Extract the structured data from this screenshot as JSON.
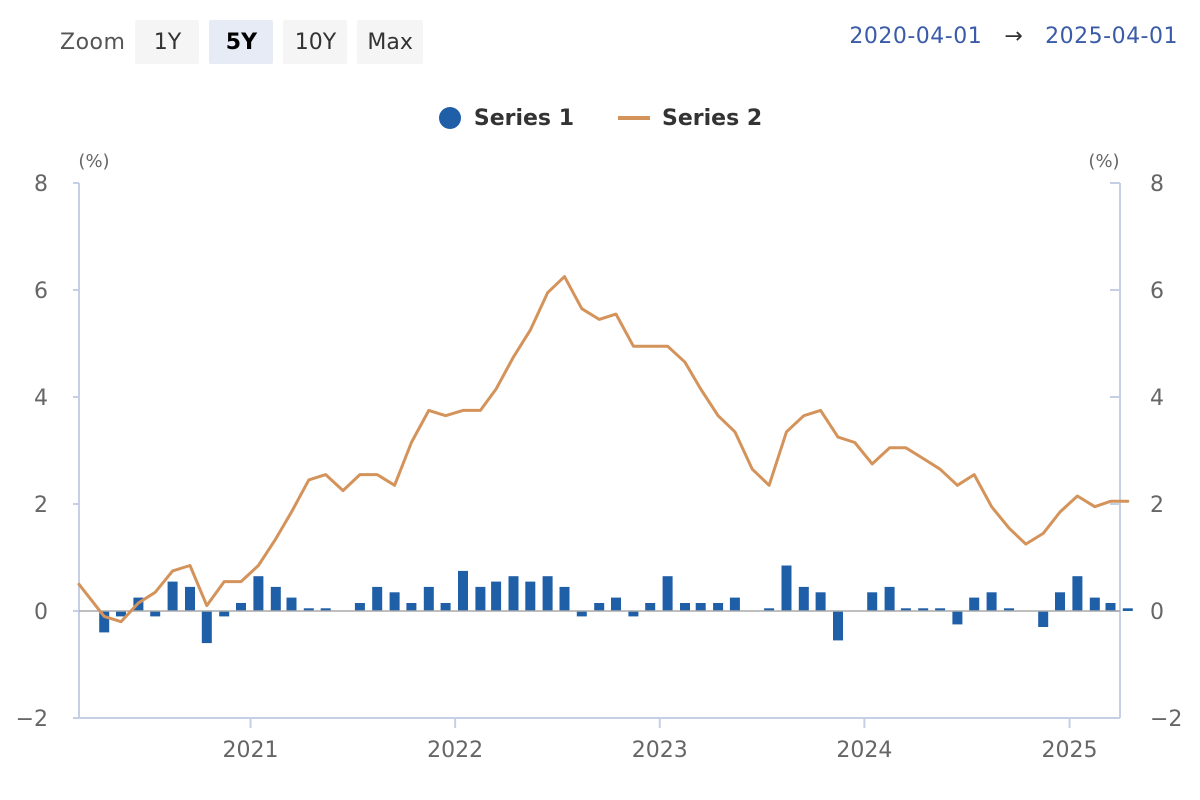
{
  "zoom": {
    "label": "Zoom",
    "buttons": [
      "1Y",
      "5Y",
      "10Y",
      "Max"
    ],
    "selected": "5Y"
  },
  "range": {
    "from": "2020-04-01",
    "arrow": "→",
    "to": "2025-04-01"
  },
  "colors": {
    "series1": "#1f5fa8",
    "series2": "#d4935a",
    "axis": "#c5cfe6",
    "zero_line": "#aaaaaa",
    "active_button": "#e6ebf5"
  },
  "chart_data": {
    "type": "bar+line",
    "x": [
      "2020-04",
      "2020-05",
      "2020-06",
      "2020-07",
      "2020-08",
      "2020-09",
      "2020-10",
      "2020-11",
      "2020-12",
      "2021-01",
      "2021-02",
      "2021-03",
      "2021-04",
      "2021-05",
      "2021-06",
      "2021-07",
      "2021-08",
      "2021-09",
      "2021-10",
      "2021-11",
      "2021-12",
      "2022-01",
      "2022-02",
      "2022-03",
      "2022-04",
      "2022-05",
      "2022-06",
      "2022-07",
      "2022-08",
      "2022-09",
      "2022-10",
      "2022-11",
      "2022-12",
      "2023-01",
      "2023-02",
      "2023-03",
      "2023-04",
      "2023-05",
      "2023-06",
      "2023-07",
      "2023-08",
      "2023-09",
      "2023-10",
      "2023-11",
      "2023-12",
      "2024-01",
      "2024-02",
      "2024-03",
      "2024-04",
      "2024-05",
      "2024-06",
      "2024-07",
      "2024-08",
      "2024-09",
      "2024-10",
      "2024-11",
      "2024-12",
      "2025-01",
      "2025-02",
      "2025-03",
      "2025-04"
    ],
    "series": [
      {
        "name": "Series 1",
        "type": "bar",
        "axis": "left",
        "values": [
          -0.4,
          -0.1,
          0.25,
          -0.1,
          0.55,
          0.45,
          -0.6,
          -0.1,
          0.15,
          0.65,
          0.45,
          0.25,
          0.05,
          0.05,
          0.0,
          0.15,
          0.45,
          0.35,
          0.15,
          0.45,
          0.15,
          0.75,
          0.45,
          0.55,
          0.65,
          0.55,
          0.65,
          0.45,
          -0.1,
          0.15,
          0.25,
          -0.1,
          0.15,
          0.65,
          0.15,
          0.15,
          0.15,
          0.25,
          0.0,
          0.05,
          0.85,
          0.45,
          0.35,
          -0.55,
          0.0,
          0.35,
          0.45,
          0.05,
          0.05,
          0.05,
          -0.25,
          0.25,
          0.35,
          0.05,
          0.0,
          -0.3,
          0.35,
          0.65,
          0.25,
          0.15,
          0.05
        ]
      },
      {
        "name": "Series 2",
        "type": "line",
        "axis": "right",
        "x": [
          "2020-03",
          "2020-04",
          "2020-05",
          "2020-06",
          "2020-07",
          "2020-08",
          "2020-09",
          "2020-10",
          "2020-11",
          "2020-12",
          "2021-01",
          "2021-02",
          "2021-03",
          "2021-04",
          "2021-05",
          "2021-06",
          "2021-07",
          "2021-08",
          "2021-09",
          "2021-10",
          "2021-11",
          "2021-12",
          "2022-01",
          "2022-02",
          "2022-03",
          "2022-04",
          "2022-05",
          "2022-06",
          "2022-07",
          "2022-08",
          "2022-09",
          "2022-10",
          "2022-11",
          "2022-12",
          "2023-01",
          "2023-02",
          "2023-03",
          "2023-04",
          "2023-05",
          "2023-06",
          "2023-07",
          "2023-08",
          "2023-09",
          "2023-10",
          "2023-11",
          "2023-12",
          "2024-01",
          "2024-02",
          "2024-03",
          "2024-04",
          "2024-05",
          "2024-06",
          "2024-07",
          "2024-08",
          "2024-09",
          "2024-10",
          "2024-11",
          "2024-12",
          "2025-01",
          "2025-02",
          "2025-03",
          "2025-04"
        ],
        "values": [
          0.5,
          -0.1,
          -0.2,
          0.15,
          0.35,
          0.75,
          0.85,
          0.1,
          0.55,
          0.55,
          0.85,
          1.35,
          1.85,
          2.45,
          2.55,
          2.25,
          2.55,
          2.55,
          2.35,
          3.15,
          3.75,
          3.65,
          3.75,
          3.75,
          4.15,
          4.75,
          5.25,
          5.95,
          6.25,
          5.65,
          5.45,
          5.55,
          4.95,
          4.95,
          4.95,
          4.65,
          4.15,
          3.65,
          3.35,
          2.65,
          2.35,
          3.35,
          3.65,
          3.75,
          3.25,
          3.15,
          2.75,
          3.05,
          3.05,
          2.85,
          2.65,
          2.35,
          2.55,
          1.95,
          1.55,
          1.25,
          1.45,
          1.85,
          2.15,
          1.95,
          2.05,
          2.05
        ]
      }
    ],
    "x_ticks": [
      "2021",
      "2022",
      "2023",
      "2024",
      "2025"
    ],
    "y_left": {
      "unit": "(%)",
      "ticks": [
        -2,
        0,
        2,
        4,
        6,
        8
      ],
      "ylim": [
        -2,
        8
      ]
    },
    "y_right": {
      "unit": "(%)",
      "ticks": [
        -2,
        0,
        2,
        4,
        6,
        8
      ],
      "ylim": [
        -2,
        8
      ]
    },
    "legend_position": "top-center",
    "grid": false
  }
}
